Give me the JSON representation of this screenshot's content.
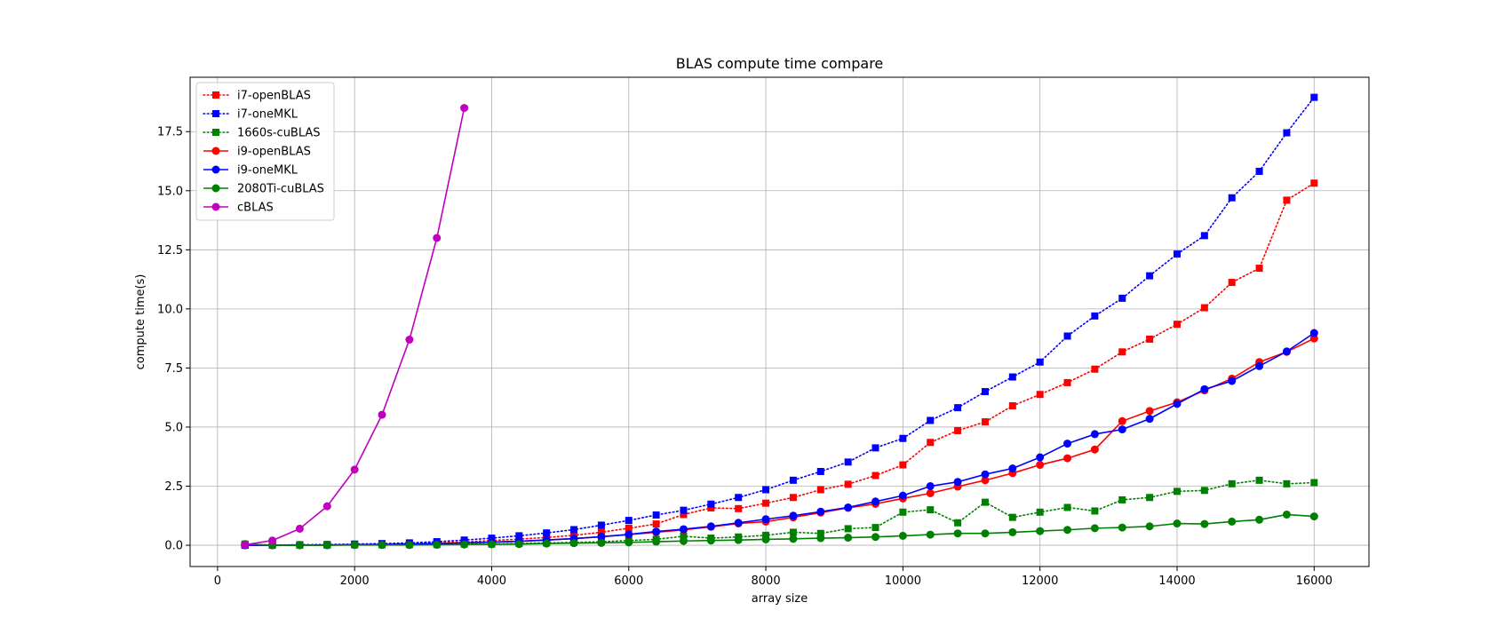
{
  "chart_data": {
    "type": "line",
    "title": "BLAS compute time compare",
    "xlabel": "array size",
    "ylabel": "compute time(s)",
    "xlim": [
      -400,
      16800
    ],
    "ylim": [
      -0.9,
      19.8
    ],
    "xticks": [
      0,
      2000,
      4000,
      6000,
      8000,
      10000,
      12000,
      14000,
      16000
    ],
    "yticks": [
      0.0,
      2.5,
      5.0,
      7.5,
      10.0,
      12.5,
      15.0,
      17.5
    ],
    "xtick_labels": [
      "0",
      "2000",
      "4000",
      "6000",
      "8000",
      "10000",
      "12000",
      "14000",
      "16000"
    ],
    "ytick_labels": [
      "0.0",
      "2.5",
      "5.0",
      "7.5",
      "10.0",
      "12.5",
      "15.0",
      "17.5"
    ],
    "grid": true,
    "legend_position": "top-left",
    "x": [
      400,
      800,
      1200,
      1600,
      2000,
      2400,
      2800,
      3200,
      3600,
      4000,
      4400,
      4800,
      5200,
      5600,
      6000,
      6400,
      6800,
      7200,
      7600,
      8000,
      8400,
      8800,
      9200,
      9600,
      10000,
      10400,
      10800,
      11200,
      11600,
      12000,
      12400,
      12800,
      13200,
      13600,
      14000,
      14400,
      14800,
      15200,
      15600,
      16000
    ],
    "series": [
      {
        "name": "i7-openBLAS",
        "color": "#ff0000",
        "linestyle": "dotted",
        "marker": "square",
        "values": [
          0.0,
          0.0,
          0.01,
          0.02,
          0.03,
          0.05,
          0.07,
          0.1,
          0.14,
          0.2,
          0.26,
          0.33,
          0.42,
          0.55,
          0.72,
          0.9,
          1.3,
          1.58,
          1.55,
          1.78,
          2.02,
          2.35,
          2.58,
          2.95,
          3.4,
          4.35,
          4.85,
          5.22,
          5.9,
          6.38,
          6.88,
          7.45,
          8.18,
          8.72,
          9.35,
          10.05,
          11.12,
          11.72,
          14.6,
          15.32
        ]
      },
      {
        "name": "i7-oneMKL",
        "color": "#0000ff",
        "linestyle": "dotted",
        "marker": "square",
        "values": [
          0.0,
          0.01,
          0.02,
          0.03,
          0.05,
          0.07,
          0.1,
          0.15,
          0.22,
          0.3,
          0.4,
          0.52,
          0.66,
          0.85,
          1.05,
          1.28,
          1.48,
          1.74,
          2.02,
          2.35,
          2.75,
          3.12,
          3.52,
          4.12,
          4.52,
          5.28,
          5.82,
          6.5,
          7.12,
          7.75,
          8.85,
          9.7,
          10.45,
          11.4,
          12.32,
          13.1,
          14.7,
          15.82,
          17.45,
          18.95
        ]
      },
      {
        "name": "1660s-cuBLAS",
        "color": "#008000",
        "linestyle": "dotted",
        "marker": "square",
        "values": [
          0.05,
          0.01,
          0.01,
          0.01,
          0.02,
          0.02,
          0.03,
          0.03,
          0.05,
          0.05,
          0.08,
          0.1,
          0.12,
          0.15,
          0.2,
          0.25,
          0.38,
          0.3,
          0.35,
          0.42,
          0.55,
          0.5,
          0.7,
          0.75,
          1.4,
          1.5,
          0.95,
          1.82,
          1.18,
          1.4,
          1.6,
          1.45,
          1.92,
          2.02,
          2.28,
          2.32,
          2.6,
          2.75,
          2.6,
          2.65
        ]
      },
      {
        "name": "i9-openBLAS",
        "color": "#ff0000",
        "linestyle": "solid",
        "marker": "circle",
        "values": [
          0.0,
          0.0,
          0.01,
          0.01,
          0.02,
          0.03,
          0.05,
          0.07,
          0.1,
          0.13,
          0.17,
          0.22,
          0.28,
          0.36,
          0.45,
          0.55,
          0.65,
          0.78,
          0.92,
          1.0,
          1.18,
          1.38,
          1.58,
          1.75,
          1.98,
          2.2,
          2.48,
          2.75,
          3.05,
          3.4,
          3.68,
          4.05,
          5.25,
          5.68,
          6.05,
          6.55,
          7.05,
          7.75,
          8.18,
          8.75
        ]
      },
      {
        "name": "i9-oneMKL",
        "color": "#0000ff",
        "linestyle": "solid",
        "marker": "circle",
        "values": [
          0.0,
          0.0,
          0.01,
          0.01,
          0.02,
          0.03,
          0.05,
          0.07,
          0.1,
          0.13,
          0.17,
          0.22,
          0.28,
          0.36,
          0.46,
          0.58,
          0.68,
          0.8,
          0.95,
          1.1,
          1.25,
          1.42,
          1.6,
          1.85,
          2.1,
          2.5,
          2.68,
          3.0,
          3.25,
          3.72,
          4.3,
          4.7,
          4.9,
          5.35,
          5.98,
          6.6,
          6.95,
          7.58,
          8.2,
          8.98
        ]
      },
      {
        "name": "2080Ti-cuBLAS",
        "color": "#008000",
        "linestyle": "solid",
        "marker": "circle",
        "values": [
          0.05,
          0.0,
          0.0,
          0.0,
          0.01,
          0.01,
          0.01,
          0.02,
          0.03,
          0.04,
          0.05,
          0.07,
          0.09,
          0.1,
          0.12,
          0.15,
          0.18,
          0.2,
          0.22,
          0.25,
          0.27,
          0.3,
          0.32,
          0.35,
          0.4,
          0.45,
          0.5,
          0.5,
          0.55,
          0.6,
          0.65,
          0.72,
          0.75,
          0.8,
          0.92,
          0.9,
          1.0,
          1.08,
          1.3,
          1.22
        ]
      },
      {
        "name": "cBLAS",
        "color": "#bf00bf",
        "linestyle": "solid",
        "marker": "circle",
        "x": [
          400,
          800,
          1200,
          1600,
          2000,
          2400,
          2800,
          3200,
          3600
        ],
        "values": [
          0.02,
          0.2,
          0.7,
          1.65,
          3.2,
          5.52,
          8.7,
          13.0,
          18.5
        ]
      }
    ]
  }
}
